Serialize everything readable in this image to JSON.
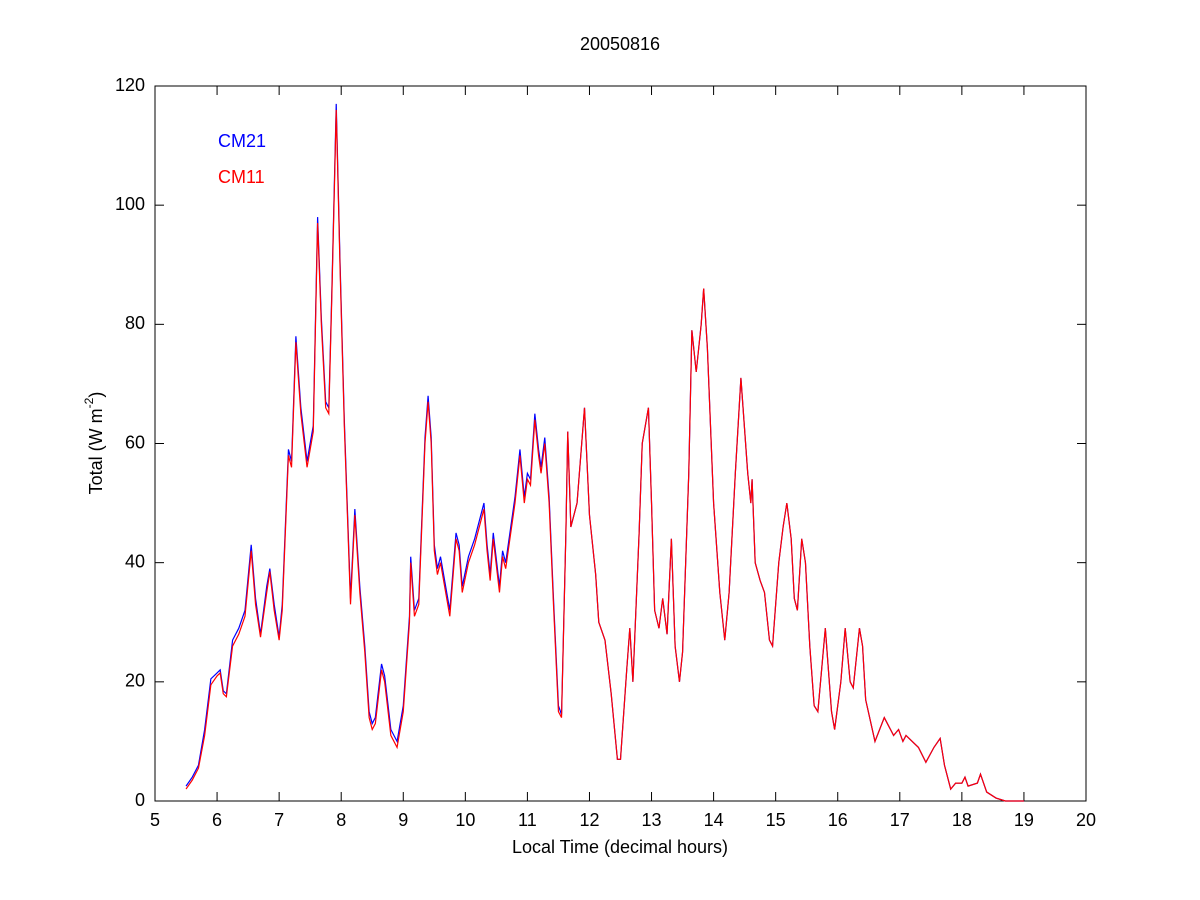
{
  "chart_data": {
    "type": "line",
    "title": "20050816",
    "xlabel": "Local Time (decimal hours)",
    "ylabel": [
      "Total (W m",
      "-2",
      ")"
    ],
    "xlim": [
      5,
      20
    ],
    "xticks": [
      5,
      6,
      7,
      8,
      9,
      10,
      11,
      12,
      13,
      14,
      15,
      16,
      17,
      18,
      19,
      20
    ],
    "ylim": [
      0,
      120
    ],
    "yticks": [
      0,
      20,
      40,
      60,
      80,
      100,
      120
    ],
    "grid": false,
    "legend": "upper left",
    "x": [
      5.5,
      5.6,
      5.7,
      5.8,
      5.9,
      6.0,
      6.05,
      6.1,
      6.15,
      6.25,
      6.35,
      6.45,
      6.55,
      6.62,
      6.7,
      6.8,
      6.85,
      6.92,
      7.0,
      7.05,
      7.15,
      7.2,
      7.27,
      7.35,
      7.45,
      7.55,
      7.62,
      7.68,
      7.75,
      7.8,
      7.85,
      7.92,
      7.98,
      8.05,
      8.15,
      8.22,
      8.3,
      8.38,
      8.45,
      8.5,
      8.55,
      8.65,
      8.7,
      8.8,
      8.9,
      9.0,
      9.1,
      9.12,
      9.18,
      9.25,
      9.35,
      9.4,
      9.45,
      9.5,
      9.55,
      9.6,
      9.7,
      9.75,
      9.85,
      9.9,
      9.95,
      10.05,
      10.15,
      10.3,
      10.35,
      10.4,
      10.45,
      10.55,
      10.6,
      10.65,
      10.8,
      10.88,
      10.95,
      11.0,
      11.05,
      11.12,
      11.18,
      11.22,
      11.28,
      11.35,
      11.42,
      11.5,
      11.55,
      11.62,
      11.65,
      11.7,
      11.8,
      11.92,
      12.0,
      12.1,
      12.15,
      12.25,
      12.35,
      12.45,
      12.5,
      12.6,
      12.65,
      12.7,
      12.8,
      12.85,
      12.95,
      13.0,
      13.05,
      13.12,
      13.18,
      13.25,
      13.32,
      13.38,
      13.45,
      13.5,
      13.6,
      13.65,
      13.72,
      13.8,
      13.84,
      13.9,
      14.0,
      14.1,
      14.18,
      14.25,
      14.35,
      14.44,
      14.55,
      14.6,
      14.62,
      14.67,
      14.75,
      14.82,
      14.9,
      14.95,
      15.05,
      15.12,
      15.18,
      15.25,
      15.3,
      15.35,
      15.42,
      15.48,
      15.55,
      15.62,
      15.68,
      15.8,
      15.85,
      15.9,
      15.95,
      16.05,
      16.12,
      16.2,
      16.25,
      16.35,
      16.4,
      16.45,
      16.6,
      16.75,
      16.8,
      16.9,
      16.98,
      17.05,
      17.1,
      17.2,
      17.3,
      17.42,
      17.55,
      17.65,
      17.72,
      17.82,
      17.9,
      18.0,
      18.05,
      18.1,
      18.25,
      18.3,
      18.4,
      18.55,
      18.7,
      19.0
    ],
    "series": [
      {
        "name": "CM21",
        "color": "#0000ff",
        "values": [
          2.5,
          4,
          6,
          12,
          20.5,
          21.5,
          22,
          18.5,
          18,
          27,
          29,
          32,
          43,
          34,
          28,
          36,
          39,
          33,
          27.5,
          33,
          59,
          57,
          78,
          66,
          57,
          63,
          98,
          81,
          67,
          66,
          86,
          117,
          91,
          64,
          34,
          49,
          36,
          26,
          15,
          13,
          14,
          23,
          21,
          12,
          10,
          16,
          31,
          41,
          32,
          34,
          61,
          68,
          61,
          43,
          39,
          41,
          35,
          32,
          45,
          43,
          36,
          41,
          44,
          50,
          43,
          38,
          45,
          36,
          42,
          40,
          51,
          59,
          51,
          55,
          54,
          65,
          59,
          56,
          61,
          51,
          34,
          16,
          14.5,
          45,
          62,
          46,
          50,
          66,
          48,
          38,
          30,
          27,
          18,
          7,
          7,
          22,
          29,
          20,
          45,
          60,
          66,
          50,
          32,
          29,
          34,
          28,
          44,
          26,
          20,
          25,
          55,
          79,
          72,
          80,
          86,
          76,
          50,
          35,
          27,
          35,
          55,
          71,
          55,
          50,
          54,
          40,
          37,
          35,
          27,
          26,
          40,
          46,
          50,
          44,
          34,
          32,
          44,
          40,
          26,
          16,
          15,
          29,
          22,
          15,
          12,
          20,
          29,
          20,
          19,
          29,
          26,
          17,
          10,
          14,
          13,
          11,
          12,
          10,
          11,
          10,
          9,
          6.5,
          9,
          10.5,
          6,
          2,
          3,
          3,
          4,
          2.5,
          3,
          4.5,
          1.5,
          0.5,
          0,
          0
        ]
      },
      {
        "name": "CM11",
        "color": "#ff0000",
        "values": [
          2,
          3.5,
          5.5,
          11,
          19.5,
          21,
          21.5,
          18,
          17.5,
          26,
          28,
          31,
          42,
          33,
          27.5,
          35,
          38.5,
          32,
          27,
          32,
          58,
          56,
          77,
          65,
          56,
          62,
          97,
          80,
          66,
          65,
          85,
          116,
          90,
          63,
          33,
          48,
          35,
          25,
          14,
          12,
          13,
          22,
          20,
          11,
          9,
          15,
          30,
          40,
          31,
          33,
          60,
          67,
          60,
          42,
          38,
          40,
          34,
          31,
          44,
          42,
          35,
          40,
          43,
          49,
          42,
          37,
          44,
          35,
          41,
          39,
          50,
          58,
          50,
          54,
          53,
          64,
          58,
          55,
          60,
          50,
          33,
          15,
          14,
          45,
          62,
          46,
          50,
          66,
          48,
          38,
          30,
          27,
          18,
          7,
          7,
          22,
          29,
          20,
          45,
          60,
          66,
          50,
          32,
          29,
          34,
          28,
          44,
          26,
          20,
          25,
          55,
          79,
          72,
          80,
          86,
          76,
          50,
          35,
          27,
          35,
          55,
          71,
          55,
          50,
          54,
          40,
          37,
          35,
          27,
          26,
          40,
          46,
          50,
          44,
          34,
          32,
          44,
          40,
          26,
          16,
          15,
          29,
          22,
          15,
          12,
          20,
          29,
          20,
          19,
          29,
          26,
          17,
          10,
          14,
          13,
          11,
          12,
          10,
          11,
          10,
          9,
          6.5,
          9,
          10.5,
          6,
          2,
          3,
          3,
          4,
          2.5,
          3,
          4.5,
          1.5,
          0.5,
          0,
          0
        ]
      }
    ]
  }
}
